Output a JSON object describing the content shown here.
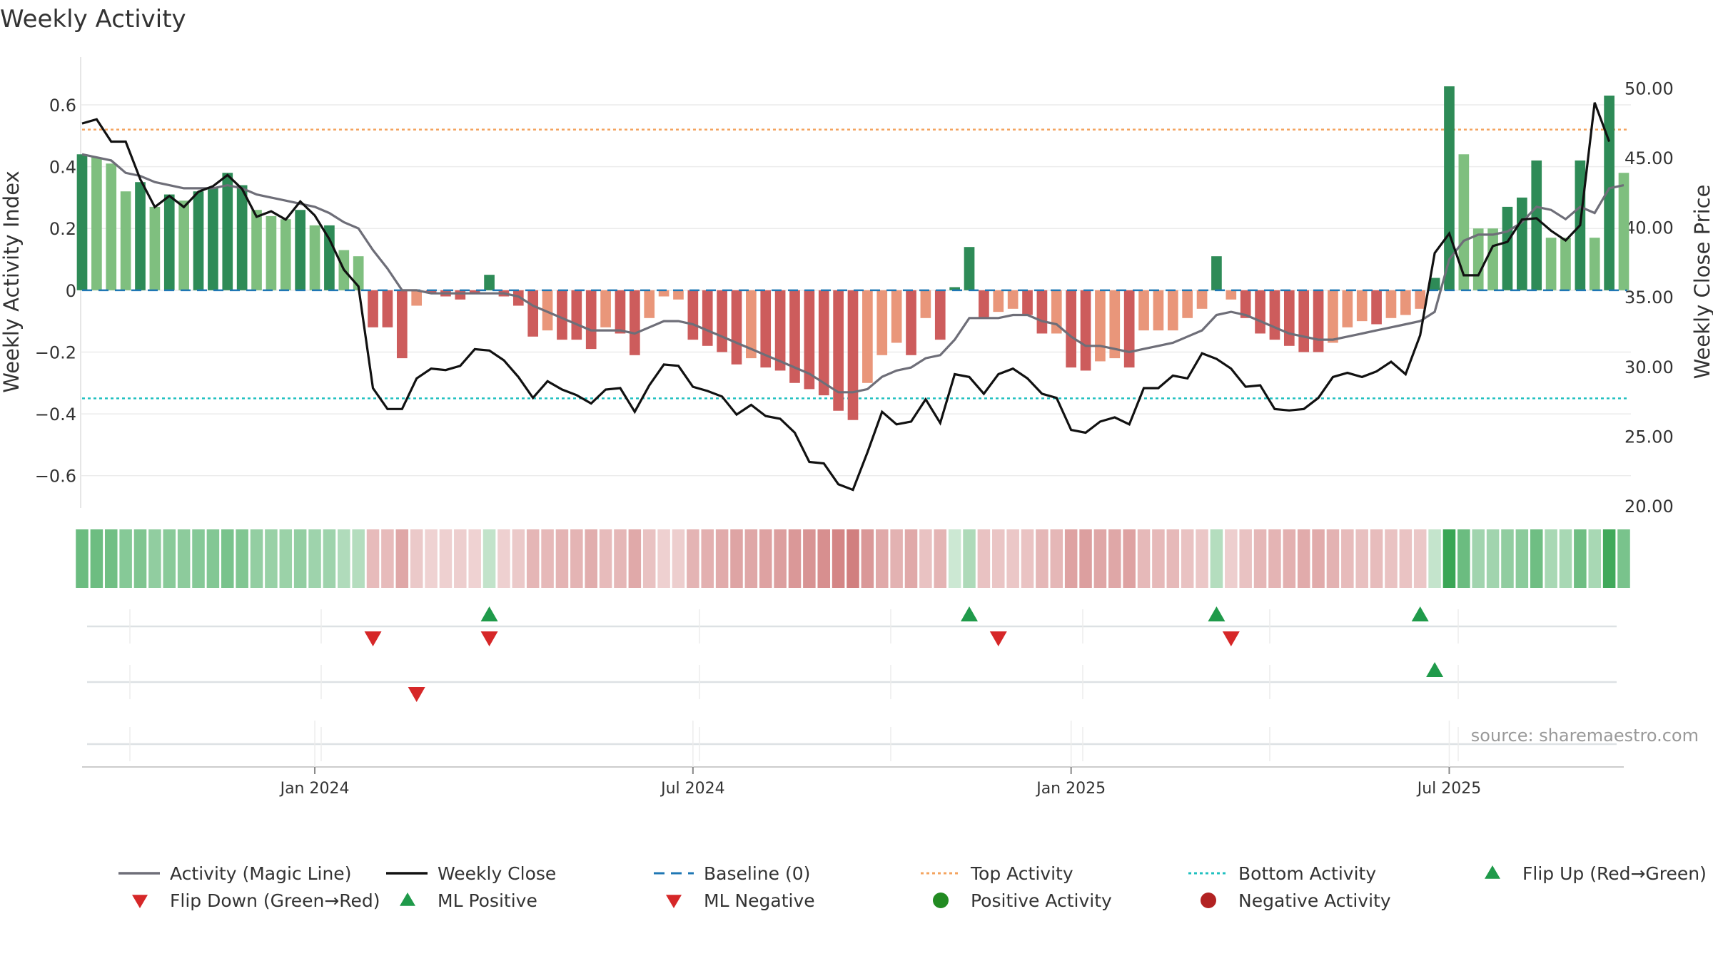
{
  "title": "Weekly Activity",
  "source": "source: sharemaestro.com",
  "colors": {
    "strong_pos": "#2e8b57",
    "light_pos": "#7fbf7f",
    "strong_neg": "#cd5c5c",
    "light_neg": "#e9967a",
    "magic_line": "#6e6e78",
    "close_line": "#111111",
    "baseline": "#1f77b4",
    "top_line": "#f4a460",
    "bottom_line": "#20c0c0",
    "flip_up": "#1f9a4a",
    "flip_down": "#d62728",
    "grid": "#ececec",
    "axis_text": "#333333"
  },
  "chart_data": {
    "type": "bar",
    "title": "Weekly Activity",
    "ylabel": "Weekly Activity Index",
    "y2label": "Weekly Close Price",
    "ylim": [
      -0.7,
      0.72
    ],
    "y2lim": [
      20,
      51.5
    ],
    "yticks": [
      {
        "v": 0.6,
        "label": "0.6"
      },
      {
        "v": 0.4,
        "label": "0.4"
      },
      {
        "v": 0.2,
        "label": "0.2"
      },
      {
        "v": 0,
        "label": "0"
      },
      {
        "v": -0.2,
        "label": "−0.2"
      },
      {
        "v": -0.4,
        "label": "−0.4"
      },
      {
        "v": -0.6,
        "label": "−0.6"
      }
    ],
    "y2ticks": [
      {
        "v": 50,
        "label": "50.00"
      },
      {
        "v": 45,
        "label": "45.00"
      },
      {
        "v": 40,
        "label": "40.00"
      },
      {
        "v": 35,
        "label": "35.00"
      },
      {
        "v": 30,
        "label": "30.00"
      },
      {
        "v": 25,
        "label": "25.00"
      },
      {
        "v": 20,
        "label": "20.00"
      }
    ],
    "xticks": [
      {
        "week": 16,
        "label": "Jan 2024"
      },
      {
        "week": 42,
        "label": "Jul 2024"
      },
      {
        "week": 68,
        "label": "Jan 2025"
      },
      {
        "week": 94,
        "label": "Jul 2025"
      }
    ],
    "top_activity": 0.52,
    "bottom_activity": -0.35,
    "activity": [
      0.44,
      0.43,
      0.41,
      0.32,
      0.35,
      0.27,
      0.31,
      0.29,
      0.32,
      0.33,
      0.38,
      0.34,
      0.26,
      0.24,
      0.23,
      0.26,
      0.21,
      0.21,
      0.13,
      0.11,
      -0.12,
      -0.12,
      -0.22,
      -0.05,
      -0.01,
      -0.02,
      -0.03,
      -0.01,
      0.05,
      -0.02,
      -0.05,
      -0.15,
      -0.13,
      -0.16,
      -0.16,
      -0.19,
      -0.12,
      -0.14,
      -0.21,
      -0.09,
      -0.02,
      -0.03,
      -0.16,
      -0.18,
      -0.2,
      -0.24,
      -0.22,
      -0.25,
      -0.26,
      -0.3,
      -0.32,
      -0.34,
      -0.39,
      -0.42,
      -0.3,
      -0.21,
      -0.17,
      -0.21,
      -0.09,
      -0.16,
      0.01,
      0.14,
      -0.09,
      -0.07,
      -0.06,
      -0.08,
      -0.14,
      -0.14,
      -0.25,
      -0.26,
      -0.23,
      -0.22,
      -0.25,
      -0.13,
      -0.13,
      -0.13,
      -0.09,
      -0.06,
      0.11,
      -0.03,
      -0.09,
      -0.14,
      -0.16,
      -0.18,
      -0.2,
      -0.2,
      -0.17,
      -0.12,
      -0.1,
      -0.11,
      -0.09,
      -0.08,
      -0.06,
      0.04,
      0.66,
      0.44,
      0.2,
      0.2,
      0.27,
      0.3,
      0.42,
      0.17,
      0.17,
      0.42,
      0.17,
      0.63,
      0.38
    ],
    "strong": [
      1,
      0,
      0,
      0,
      1,
      0,
      1,
      0,
      1,
      1,
      1,
      1,
      0,
      0,
      0,
      1,
      0,
      1,
      0,
      0,
      1,
      1,
      1,
      0,
      1,
      1,
      1,
      1,
      1,
      1,
      1,
      1,
      0,
      1,
      1,
      1,
      0,
      1,
      1,
      0,
      0,
      0,
      1,
      1,
      1,
      1,
      0,
      1,
      1,
      1,
      1,
      1,
      1,
      1,
      0,
      0,
      0,
      1,
      0,
      1,
      1,
      1,
      1,
      0,
      0,
      1,
      1,
      0,
      1,
      1,
      0,
      0,
      1,
      0,
      0,
      0,
      0,
      0,
      1,
      0,
      1,
      1,
      1,
      1,
      1,
      1,
      0,
      0,
      0,
      1,
      0,
      0,
      0,
      1,
      1,
      0,
      0,
      0,
      1,
      1,
      1,
      0,
      0,
      1,
      0,
      1,
      0
    ],
    "magic_line": [
      0.44,
      0.43,
      0.42,
      0.38,
      0.37,
      0.35,
      0.34,
      0.33,
      0.33,
      0.33,
      0.34,
      0.33,
      0.31,
      0.3,
      0.29,
      0.28,
      0.27,
      0.25,
      0.22,
      0.2,
      0.13,
      0.07,
      0.0,
      0.0,
      -0.01,
      -0.01,
      -0.01,
      -0.01,
      -0.01,
      -0.01,
      -0.02,
      -0.05,
      -0.07,
      -0.09,
      -0.11,
      -0.13,
      -0.13,
      -0.13,
      -0.14,
      -0.12,
      -0.1,
      -0.1,
      -0.11,
      -0.13,
      -0.15,
      -0.17,
      -0.19,
      -0.21,
      -0.23,
      -0.25,
      -0.27,
      -0.3,
      -0.33,
      -0.33,
      -0.32,
      -0.28,
      -0.26,
      -0.25,
      -0.22,
      -0.21,
      -0.16,
      -0.09,
      -0.09,
      -0.09,
      -0.08,
      -0.08,
      -0.1,
      -0.11,
      -0.15,
      -0.18,
      -0.18,
      -0.19,
      -0.2,
      -0.19,
      -0.18,
      -0.17,
      -0.15,
      -0.13,
      -0.08,
      -0.07,
      -0.08,
      -0.1,
      -0.12,
      -0.14,
      -0.15,
      -0.16,
      -0.16,
      -0.15,
      -0.14,
      -0.13,
      -0.12,
      -0.11,
      -0.1,
      -0.07,
      0.1,
      0.16,
      0.18,
      0.18,
      0.19,
      0.22,
      0.27,
      0.26,
      0.23,
      0.27,
      0.25,
      0.33,
      0.34
    ],
    "weekly_close": [
      47.5,
      47.8,
      46.2,
      46.2,
      43.5,
      41.5,
      42.3,
      41.5,
      42.6,
      43.0,
      43.8,
      42.8,
      40.8,
      41.2,
      40.6,
      41.9,
      40.9,
      39.2,
      37.0,
      35.8,
      28.5,
      27.0,
      27.0,
      29.2,
      29.9,
      29.8,
      30.1,
      31.3,
      31.2,
      30.5,
      29.3,
      27.8,
      29.0,
      28.4,
      28.0,
      27.4,
      28.4,
      28.5,
      26.8,
      28.7,
      30.2,
      30.1,
      28.6,
      28.3,
      27.9,
      26.6,
      27.3,
      26.5,
      26.3,
      25.3,
      23.2,
      23.1,
      21.6,
      21.2,
      23.9,
      26.8,
      25.9,
      26.1,
      27.7,
      26.0,
      29.5,
      29.3,
      28.1,
      29.5,
      29.9,
      29.2,
      28.1,
      27.8,
      25.5,
      25.3,
      26.1,
      26.4,
      25.9,
      28.5,
      28.5,
      29.4,
      29.2,
      31.0,
      30.6,
      29.9,
      28.6,
      28.7,
      27.0,
      26.9,
      27.0,
      27.8,
      29.3,
      29.6,
      29.3,
      29.7,
      30.4,
      29.5,
      32.3,
      38.2,
      39.6,
      36.6,
      36.6,
      38.7,
      39.0,
      40.6,
      40.7,
      39.8,
      39.1,
      40.2,
      49.0,
      46.2
    ],
    "flip_up": [
      28,
      61,
      78,
      92
    ],
    "flip_down": [
      20,
      28,
      63,
      79
    ],
    "ml_positive": [
      93
    ],
    "ml_negative": [
      23
    ]
  },
  "legend": [
    {
      "key": "magic",
      "kind": "line",
      "label": "Activity (Magic Line)"
    },
    {
      "key": "close",
      "kind": "line",
      "label": "Weekly Close"
    },
    {
      "key": "baseline",
      "kind": "dash",
      "label": "Baseline (0)"
    },
    {
      "key": "top",
      "kind": "dot",
      "label": "Top Activity"
    },
    {
      "key": "bottom",
      "kind": "dot",
      "label": "Bottom Activity"
    },
    {
      "key": "flipup",
      "kind": "tri-up",
      "label": "Flip Up (Red→Green)"
    },
    {
      "key": "flipdown",
      "kind": "tri-down",
      "label": "Flip Down (Green→Red)"
    },
    {
      "key": "mlpos",
      "kind": "tri-up",
      "label": "ML Positive"
    },
    {
      "key": "mlneg",
      "kind": "tri-down",
      "label": "ML Negative"
    },
    {
      "key": "posact",
      "kind": "circle-pos",
      "label": "Positive Activity"
    },
    {
      "key": "negact",
      "kind": "circle-neg",
      "label": "Negative Activity"
    }
  ]
}
